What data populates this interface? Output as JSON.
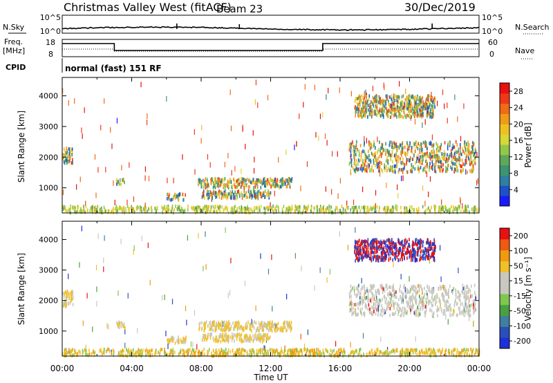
{
  "header": {
    "station": "Christmas Valley West (fitACF)",
    "beam": "Beam 23",
    "date": "30/Dec/2019"
  },
  "strips": {
    "nsky_label": "N.Sky",
    "nsky_top": "10^5",
    "nsky_bottom": "10^0",
    "nsearch_label": "N.Search",
    "freq_label": "Freq.",
    "freq_unit": "[MHz]",
    "freq_top": "18",
    "freq_bottom": "8",
    "nave_top": "60",
    "nave_bottom": "0",
    "nave_label": "Nave",
    "cpid_label": "CPID",
    "cpid_text": "normal (fast) 151 RF"
  },
  "chart_data": [
    {
      "type": "heatmap",
      "parameter": "Power",
      "ylabel": "Slant Range [km]",
      "yticks": [
        1000,
        2000,
        3000,
        4000
      ],
      "ylim": [
        180,
        4600
      ],
      "xticks": [
        "00:00",
        "04:00",
        "08:00",
        "12:00",
        "16:00",
        "20:00",
        "00:00"
      ],
      "xlim_hours": [
        0,
        24
      ],
      "colorbar": {
        "label": "Power [dB]",
        "ticks": [
          4,
          8,
          12,
          16,
          20,
          24,
          28
        ],
        "range": [
          0,
          30
        ]
      },
      "echo_regions": [
        {
          "t_start": 0.0,
          "t_end": 0.6,
          "range_min": 1800,
          "range_max": 2300
        },
        {
          "t_start": 3.1,
          "t_end": 3.6,
          "range_min": 1100,
          "range_max": 1300
        },
        {
          "t_start": 6.0,
          "t_end": 7.1,
          "range_min": 600,
          "range_max": 800
        },
        {
          "t_start": 7.8,
          "t_end": 13.2,
          "range_min": 1000,
          "range_max": 1300
        },
        {
          "t_start": 8.0,
          "t_end": 12.0,
          "range_min": 650,
          "range_max": 900
        },
        {
          "t_start": 16.5,
          "t_end": 23.8,
          "range_min": 1500,
          "range_max": 2500
        },
        {
          "t_start": 16.8,
          "t_end": 21.5,
          "range_min": 3300,
          "range_max": 4000
        },
        {
          "t_start": 0.0,
          "t_end": 24.0,
          "range_min": 180,
          "range_max": 400
        }
      ]
    },
    {
      "type": "heatmap",
      "parameter": "Velocity",
      "ylabel": "Slant Range [km]",
      "yticks": [
        1000,
        2000,
        3000,
        4000
      ],
      "ylim": [
        180,
        4600
      ],
      "xticks": [
        "00:00",
        "04:00",
        "08:00",
        "12:00",
        "16:00",
        "20:00",
        "00:00"
      ],
      "xlabel": "Time UT",
      "colorbar": {
        "label": "Velocity [m s⁻¹]",
        "ticks": [
          200,
          100,
          50,
          15,
          -15,
          -50,
          -100,
          -200
        ],
        "range": [
          -250,
          250
        ]
      }
    }
  ],
  "colors": {
    "power_scale": [
      "#1a1aff",
      "#1e50c8",
      "#2f7fa0",
      "#3c9470",
      "#5fa85a",
      "#92c84a",
      "#d8d838",
      "#f0c020",
      "#f09a18",
      "#f06a18",
      "#f03818",
      "#e81010"
    ],
    "velocity_scale": [
      "#e81010",
      "#f05a10",
      "#f09a10",
      "#f0c028",
      "#c8c8c0",
      "#c8c8c0",
      "#7ec850",
      "#4aa040",
      "#3f7fa0",
      "#2b4fb8",
      "#1d2fd8"
    ]
  }
}
